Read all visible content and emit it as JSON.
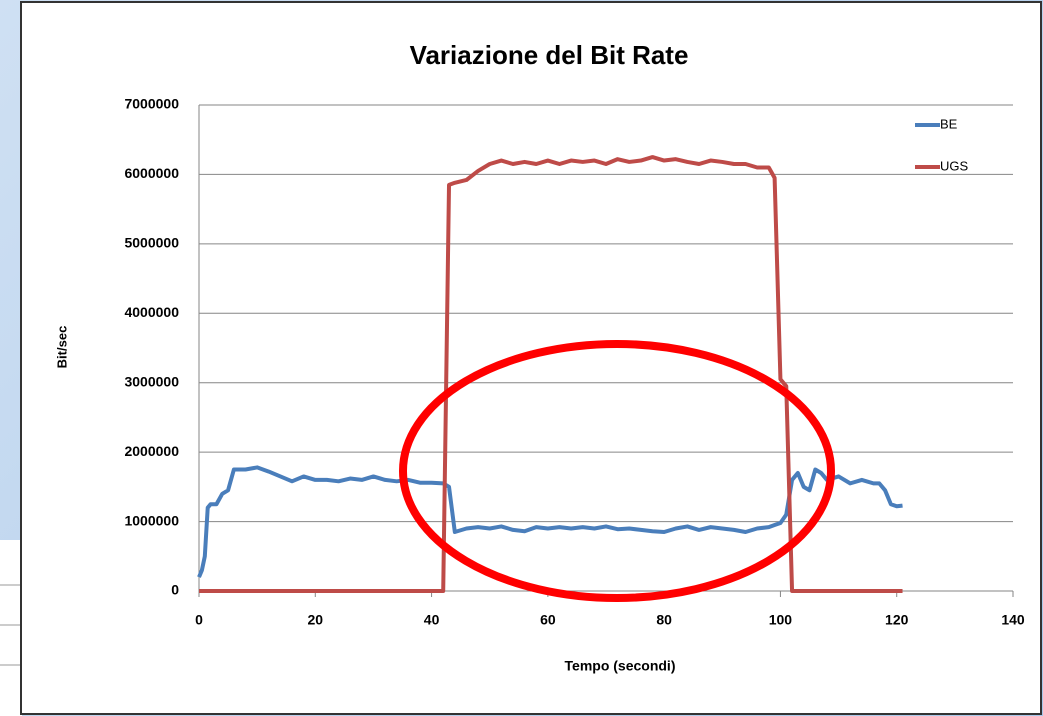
{
  "chart_data": {
    "type": "line",
    "title": "Variazione del Bit Rate",
    "x_label": "Tempo (secondi)",
    "y_label": "Bit/sec",
    "x": [
      0,
      0.5,
      1,
      1.5,
      2,
      3,
      4,
      5,
      6,
      8,
      10,
      12,
      14,
      16,
      18,
      20,
      22,
      24,
      26,
      28,
      30,
      32,
      34,
      36,
      38,
      40,
      42,
      43,
      44,
      46,
      48,
      50,
      52,
      54,
      56,
      58,
      60,
      62,
      64,
      66,
      68,
      70,
      72,
      74,
      76,
      78,
      80,
      82,
      84,
      86,
      88,
      90,
      92,
      94,
      96,
      98,
      99,
      100,
      101,
      102,
      103,
      104,
      105,
      106,
      107,
      108,
      110,
      112,
      114,
      116,
      117,
      118,
      119,
      120,
      121
    ],
    "series": [
      {
        "name": "BE",
        "color": "#4a7ebb",
        "values": [
          200000,
          300000,
          500000,
          1200000,
          1250000,
          1250000,
          1400000,
          1450000,
          1750000,
          1750000,
          1780000,
          1720000,
          1650000,
          1580000,
          1650000,
          1600000,
          1600000,
          1580000,
          1620000,
          1600000,
          1650000,
          1600000,
          1580000,
          1600000,
          1560000,
          1560000,
          1550000,
          1500000,
          850000,
          900000,
          920000,
          900000,
          930000,
          880000,
          860000,
          920000,
          900000,
          920000,
          900000,
          920000,
          900000,
          930000,
          890000,
          900000,
          880000,
          860000,
          850000,
          900000,
          930000,
          880000,
          920000,
          900000,
          880000,
          850000,
          900000,
          920000,
          950000,
          980000,
          1100000,
          1600000,
          1700000,
          1500000,
          1450000,
          1750000,
          1700000,
          1600000,
          1650000,
          1550000,
          1600000,
          1550000,
          1550000,
          1450000,
          1250000,
          1220000,
          1230000
        ]
      },
      {
        "name": "UGS",
        "color": "#be4b48",
        "values": [
          0,
          0,
          0,
          0,
          0,
          0,
          0,
          0,
          0,
          0,
          0,
          0,
          0,
          0,
          0,
          0,
          0,
          0,
          0,
          0,
          0,
          0,
          0,
          0,
          0,
          0,
          0,
          5850000,
          5880000,
          5920000,
          6050000,
          6150000,
          6200000,
          6150000,
          6180000,
          6150000,
          6200000,
          6150000,
          6200000,
          6180000,
          6200000,
          6150000,
          6220000,
          6180000,
          6200000,
          6250000,
          6200000,
          6220000,
          6180000,
          6150000,
          6200000,
          6180000,
          6150000,
          6150000,
          6100000,
          6100000,
          5950000,
          3050000,
          2950000,
          0,
          0,
          0,
          0,
          0,
          0,
          0,
          0,
          0,
          0,
          0,
          0,
          0,
          0,
          0,
          0
        ]
      }
    ],
    "xlim": [
      0,
      140
    ],
    "xticks": [
      0,
      20,
      40,
      60,
      80,
      100,
      120,
      140
    ],
    "ylim": [
      0,
      7000000
    ],
    "yticks": [
      0,
      1000000,
      2000000,
      3000000,
      4000000,
      5000000,
      6000000,
      7000000
    ],
    "grid": true,
    "legend": "top-right"
  }
}
